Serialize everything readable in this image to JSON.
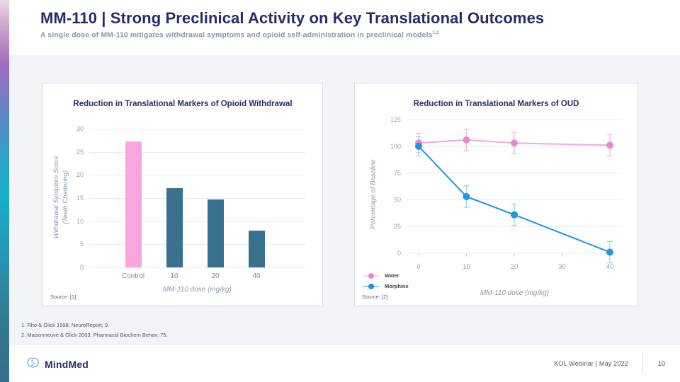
{
  "header": {
    "title": "MM-110 | Strong Preclinical Activity on Key Translational Outcomes",
    "subtitle": "A single dose of MM-110 mitigates withdrawal symptoms and opioid self-administration in preclinical models",
    "subtitle_sup": "1,2"
  },
  "chart_data": [
    {
      "type": "bar",
      "title": "Reduction in Translational Markers of Opioid Withdrawal",
      "categories": [
        "Control",
        "10",
        "20",
        "40"
      ],
      "values": [
        27.3,
        17.1,
        14.7,
        8.0
      ],
      "bar_colors": [
        "#f9a6de",
        "#39718f",
        "#39718f",
        "#39718f"
      ],
      "ylabel": "Withdrawal Symptom Score (Teeth Chattering)",
      "ylabel_lines": [
        "Withdrawal Symptom Score",
        "(Teeth Chattering)"
      ],
      "xlabel": "MM-110 dose (mg/kg)",
      "ylim": [
        0,
        30
      ],
      "yticks": [
        0,
        5,
        10,
        15,
        20,
        25,
        30
      ],
      "grid": "horizontal",
      "source": "Source: [1]"
    },
    {
      "type": "line",
      "title": "Reduction in Translational Markers of OUD",
      "x": [
        0,
        10,
        20,
        40
      ],
      "xticks": [
        0,
        10,
        20,
        30,
        40
      ],
      "series": [
        {
          "name": "Water",
          "values": [
            103,
            106,
            103,
            101
          ],
          "errors": [
            9,
            10,
            10,
            10
          ],
          "marker_color": "#e987d2",
          "line_color": "#f3a9dd",
          "error_color": "#f2b9e2"
        },
        {
          "name": "Morphine",
          "values": [
            100,
            53,
            36,
            1
          ],
          "errors": [
            9,
            10,
            10,
            10
          ],
          "marker_color": "#2095e2",
          "line_color": "#2095e2",
          "error_color": "#9fd0f0"
        }
      ],
      "ylabel": "Percentage of Baseline",
      "xlabel": "MM-110 dose (mg/kg)",
      "ylim": [
        0,
        125
      ],
      "yticks": [
        0,
        25,
        50,
        75,
        100,
        125
      ],
      "grid": "horizontal",
      "legend_position": "bottom-left",
      "source": "Source: [2]"
    }
  ],
  "footnotes": [
    "1.  Rho & Glick 1998; NeuroReport; 9.",
    "2. Maisonneuve & Glick 2003; Pharmacol Biochem Behav; 75."
  ],
  "footer": {
    "brand": "MindMed",
    "event": "KOL Webinar  |  May 2022",
    "page": "10"
  },
  "colors": {
    "title_navy": "#272c6b",
    "subtitle_gray": "#8b95a9",
    "band_bg": "#f3f4f8",
    "pink": "#f9a6de",
    "teal": "#39718f",
    "blue": "#2095e2",
    "axis_text": "#98a0ae",
    "gridline": "#e9ebf0"
  }
}
